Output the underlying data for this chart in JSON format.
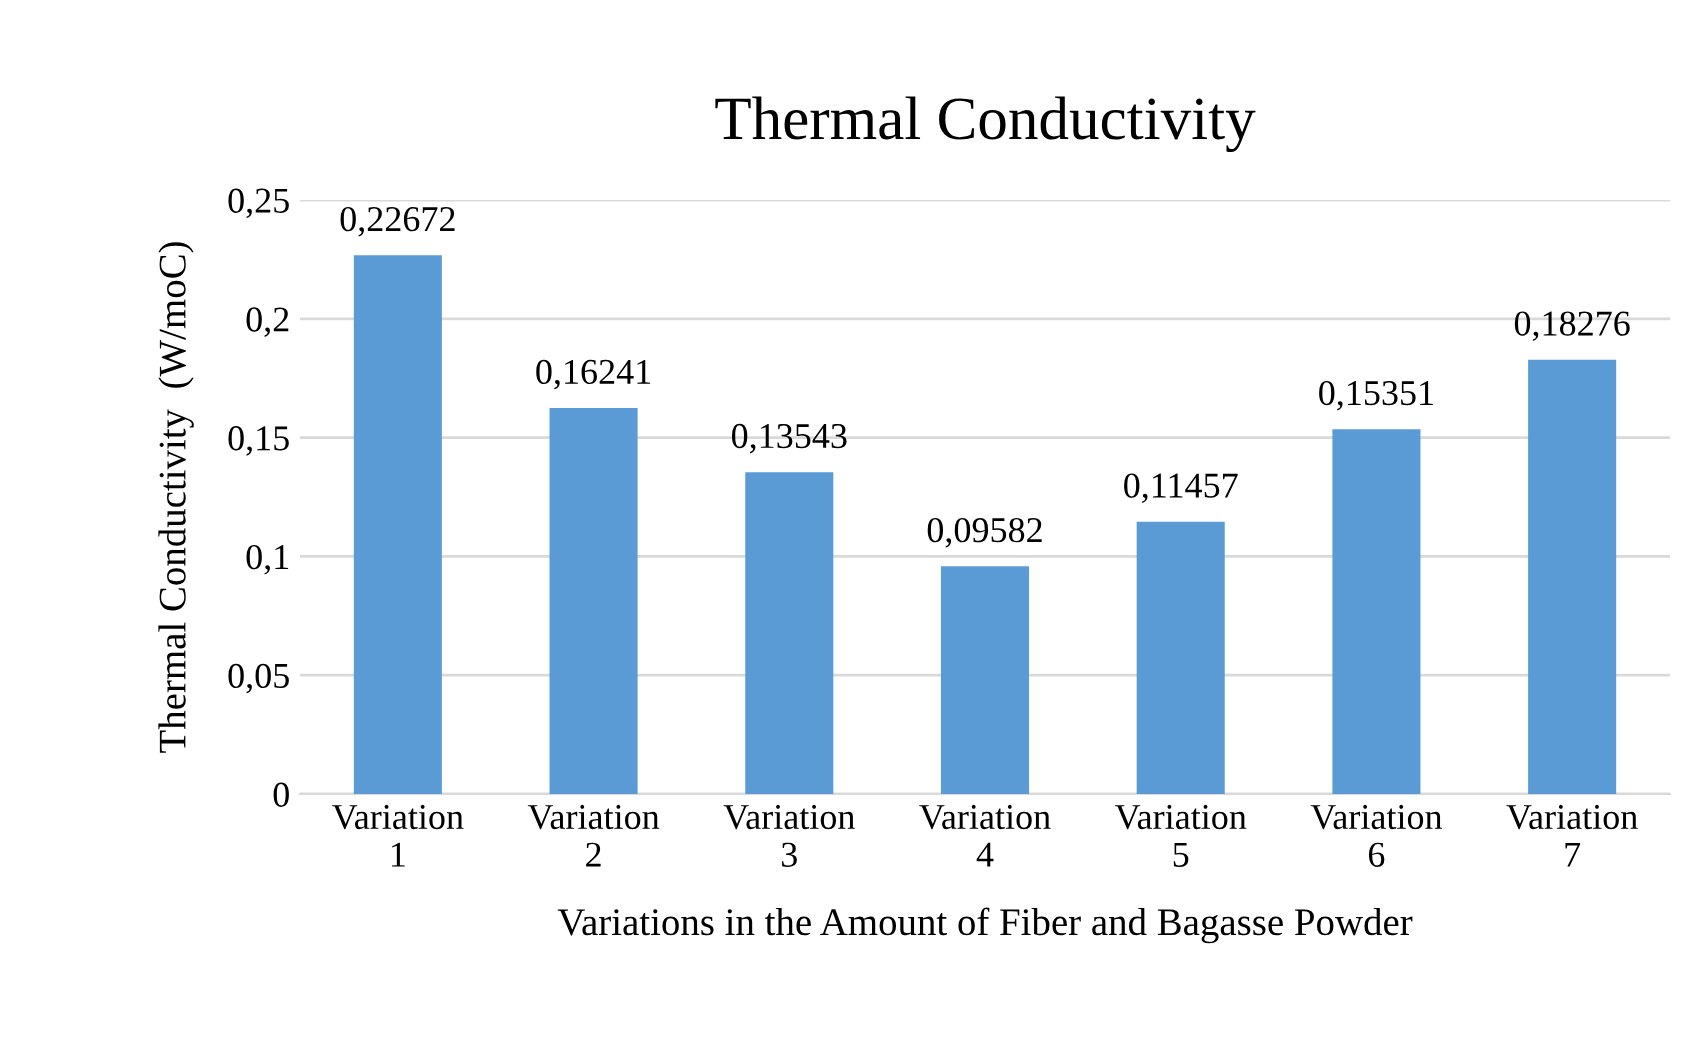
{
  "chart_data": {
    "type": "bar",
    "title": "Thermal Conductivity",
    "xlabel": "Variations in the Amount of Fiber and Bagasse Powder",
    "ylabel": "Thermal Conductivity  (W/moC)",
    "categories": [
      "Variation\n1",
      "Variation\n2",
      "Variation\n3",
      "Variation\n4",
      "Variation\n5",
      "Variation\n6",
      "Variation\n7"
    ],
    "values": [
      0.22672,
      0.16241,
      0.13543,
      0.09582,
      0.11457,
      0.15351,
      0.18276
    ],
    "value_labels": [
      "0,22672",
      "0,16241",
      "0,13543",
      "0,09582",
      "0,11457",
      "0,15351",
      "0,18276"
    ],
    "color": "#5b9bd5",
    "ylim": [
      0,
      0.25
    ],
    "yticks": [
      {
        "value": 0,
        "label": "0"
      },
      {
        "value": 0.05,
        "label": "0,05"
      },
      {
        "value": 0.1,
        "label": "0,1"
      },
      {
        "value": 0.15,
        "label": "0,15"
      },
      {
        "value": 0.2,
        "label": "0,2"
      },
      {
        "value": 0.25,
        "label": "0,25"
      }
    ],
    "grid": "y"
  }
}
